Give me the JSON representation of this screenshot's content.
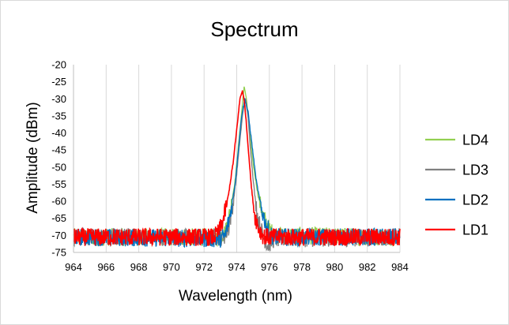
{
  "chart_data": {
    "type": "line",
    "title": "Spectrum",
    "xlabel": "Wavelength (nm)",
    "ylabel": "Amplitude (dBm)",
    "xlim": [
      964,
      984
    ],
    "ylim": [
      -75,
      -20
    ],
    "xticks": [
      "964",
      "966",
      "968",
      "970",
      "972",
      "974",
      "976",
      "978",
      "980",
      "982",
      "984"
    ],
    "yticks": [
      "-20",
      "-25",
      "-30",
      "-35",
      "-40",
      "-45",
      "-50",
      "-55",
      "-60",
      "-65",
      "-70",
      "-75"
    ],
    "grid": "vertical",
    "legend_position": "right",
    "series": [
      {
        "name": "LD4",
        "color": "#92d050",
        "x": [
          964,
          972.9,
          973.3,
          973.6,
          973.9,
          974.1,
          974.3,
          974.45,
          974.6,
          974.8,
          975.0,
          975.3,
          975.6,
          975.9,
          976.3,
          984
        ],
        "y": [
          -70.5,
          -70.5,
          -69,
          -63,
          -54,
          -44,
          -34,
          -26.5,
          -30,
          -40,
          -49,
          -58,
          -64,
          -67.5,
          -70,
          -70.5
        ]
      },
      {
        "name": "LD3",
        "color": "#808080",
        "x": [
          964,
          973.2,
          973.5,
          973.8,
          974.0,
          974.2,
          974.4,
          974.55,
          974.7,
          974.9,
          975.1,
          975.3,
          975.6,
          975.9,
          976.3,
          984
        ],
        "y": [
          -70.5,
          -70.5,
          -68,
          -60,
          -52,
          -42,
          -33,
          -30,
          -36,
          -48,
          -58,
          -65,
          -70,
          -73,
          -71,
          -70.5
        ]
      },
      {
        "name": "LD2",
        "color": "#0070c0",
        "x": [
          964,
          973.0,
          973.3,
          973.6,
          973.9,
          974.1,
          974.3,
          974.5,
          974.7,
          974.95,
          975.2,
          975.5,
          975.8,
          976.1,
          976.4,
          984
        ],
        "y": [
          -70.5,
          -71,
          -70,
          -64,
          -55,
          -45,
          -35,
          -30,
          -34,
          -44,
          -54,
          -62,
          -67,
          -70,
          -70.5,
          -70.5
        ]
      },
      {
        "name": "LD1",
        "color": "#ff0000",
        "x": [
          964,
          972.6,
          972.9,
          973.2,
          973.5,
          973.8,
          974.0,
          974.2,
          974.35,
          974.5,
          974.7,
          974.9,
          975.1,
          975.35,
          975.6,
          975.9,
          984
        ],
        "y": [
          -70.5,
          -70.5,
          -69,
          -65,
          -58,
          -48,
          -39,
          -30,
          -27.5,
          -32,
          -44,
          -56,
          -64,
          -68,
          -70,
          -70.5,
          -70.5
        ]
      }
    ],
    "legend_order": [
      "LD4",
      "LD3",
      "LD2",
      "LD1"
    ]
  }
}
